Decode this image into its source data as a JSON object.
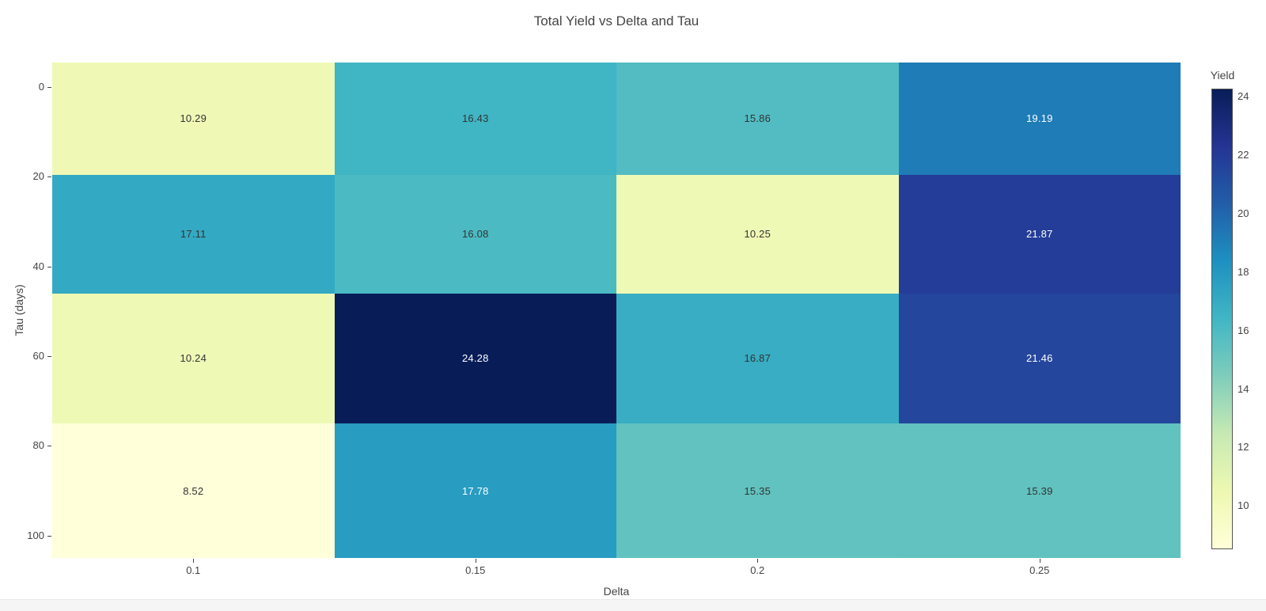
{
  "title": "Total Yield vs Delta and Tau",
  "chart_data": {
    "type": "heatmap",
    "title": "Total Yield vs Delta and Tau",
    "xlabel": "Delta",
    "ylabel": "Tau (days)",
    "x_tick_labels": [
      "0.1",
      "0.15",
      "0.2",
      "0.25"
    ],
    "x_tick_values": [
      0.1,
      0.15,
      0.2,
      0.25
    ],
    "x_axis_range": [
      0.075,
      0.275
    ],
    "col_boundaries_delta": [
      0.075,
      0.125,
      0.175,
      0.225,
      0.275
    ],
    "y_tick_labels": [
      "0",
      "20",
      "40",
      "60",
      "80",
      "100"
    ],
    "y_tick_values": [
      0,
      20,
      40,
      60,
      80,
      100
    ],
    "y_axis_range": [
      -5.5,
      105
    ],
    "row_boundaries_tau": [
      -5.5,
      19.5,
      46,
      75,
      105
    ],
    "z": [
      [
        10.29,
        16.43,
        15.86,
        19.19
      ],
      [
        17.11,
        16.08,
        10.25,
        21.87
      ],
      [
        10.24,
        24.28,
        16.87,
        21.46
      ],
      [
        8.52,
        17.78,
        15.35,
        15.39
      ]
    ],
    "zmin": 8.52,
    "zmax": 24.28,
    "grid": false,
    "legend_position": "none",
    "colorbar": {
      "title": "Yield",
      "tick_labels": [
        "10",
        "12",
        "14",
        "16",
        "18",
        "20",
        "22",
        "24"
      ],
      "tick_values": [
        10,
        12,
        14,
        16,
        18,
        20,
        22,
        24
      ]
    },
    "colorscale": {
      "name": "YlGnBu",
      "stops": [
        [
          0,
          "#ffffd9"
        ],
        [
          0.125,
          "#edf8b1"
        ],
        [
          0.25,
          "#c7e9b4"
        ],
        [
          0.375,
          "#7fcdbb"
        ],
        [
          0.5,
          "#41b6c4"
        ],
        [
          0.625,
          "#1d91c0"
        ],
        [
          0.75,
          "#225ea8"
        ],
        [
          0.875,
          "#253494"
        ],
        [
          1,
          "#081d58"
        ]
      ]
    }
  },
  "colors": {
    "cell_text_dark": "#333333",
    "cell_text_light": "#ffffff",
    "axis_text": "#444444",
    "background": "#ffffff",
    "bottom_bar": "#f5f5f6"
  }
}
